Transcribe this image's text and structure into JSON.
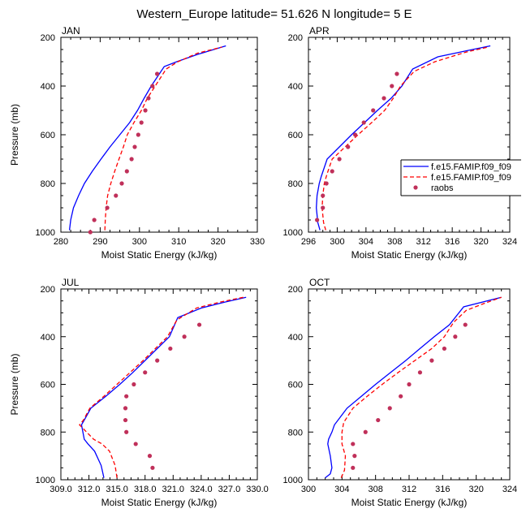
{
  "figure": {
    "title": "Western_Europe  latitude= 51.626 N longitude= 5 E"
  },
  "legend": {
    "entries": [
      {
        "label": "f.e15.FAMIP.f09_f09",
        "color": "#0000ff",
        "style": "solid"
      },
      {
        "label": "f.e15.FAMIP.f09_f09",
        "color": "#ff0000",
        "style": "dashed"
      },
      {
        "label": "raobs",
        "color": "#c0305a",
        "style": "dot"
      }
    ]
  },
  "chart_data": [
    {
      "type": "line",
      "panel_label": "JAN",
      "xlabel": "Moist Static Energy (kJ/kg)",
      "ylabel": "Pressure (mb)",
      "xlim": [
        280,
        330
      ],
      "ylim": [
        1000,
        200
      ],
      "y_inverted": true,
      "xticks": [
        "280",
        "290",
        "300",
        "310",
        "320",
        "330"
      ],
      "xtick_values": [
        280,
        290,
        300,
        310,
        320,
        330
      ],
      "yticks": [
        "200",
        "400",
        "600",
        "800",
        "1000"
      ],
      "ytick_values": [
        200,
        400,
        600,
        800,
        1000
      ],
      "series": [
        {
          "style": "solid",
          "color": "#0000ff",
          "points": [
            [
              282.2,
              992
            ],
            [
              282.5,
              950
            ],
            [
              283.2,
              900
            ],
            [
              284.5,
              850
            ],
            [
              286,
              800
            ],
            [
              288,
              750
            ],
            [
              290.2,
              700
            ],
            [
              292.5,
              650
            ],
            [
              295,
              600
            ],
            [
              297.5,
              550
            ],
            [
              299.5,
              500
            ],
            [
              301.2,
              450
            ],
            [
              303,
              400
            ],
            [
              306.3,
              320
            ],
            [
              309.5,
              300
            ],
            [
              314.8,
              270
            ],
            [
              322,
              235
            ]
          ]
        },
        {
          "style": "dashed",
          "color": "#ff0000",
          "points": [
            [
              291.2,
              992
            ],
            [
              291.3,
              950
            ],
            [
              291.5,
              900
            ],
            [
              291.9,
              850
            ],
            [
              292.7,
              800
            ],
            [
              293.7,
              750
            ],
            [
              294.8,
              700
            ],
            [
              295.9,
              650
            ],
            [
              296.9,
              600
            ],
            [
              298.6,
              550
            ],
            [
              300.5,
              500
            ],
            [
              302,
              450
            ],
            [
              304,
              400
            ],
            [
              306.8,
              330
            ],
            [
              309.8,
              300
            ],
            [
              314.8,
              265
            ],
            [
              321,
              240
            ]
          ]
        },
        {
          "style": "dot",
          "color": "#c0305a",
          "points": [
            [
              287.5,
              1000
            ],
            [
              288.5,
              950
            ],
            [
              291.8,
              900
            ],
            [
              294,
              850
            ],
            [
              295.5,
              800
            ],
            [
              296.8,
              750
            ],
            [
              298,
              700
            ],
            [
              298.8,
              650
            ],
            [
              299.7,
              600
            ],
            [
              300.5,
              550
            ],
            [
              301.5,
              500
            ],
            [
              302.3,
              450
            ],
            [
              303.3,
              400
            ],
            [
              304.5,
              350
            ]
          ]
        }
      ]
    },
    {
      "type": "line",
      "panel_label": "APR",
      "xlabel": "Moist Static Energy (kJ/kg)",
      "ylabel": "",
      "xlim": [
        296,
        324
      ],
      "ylim": [
        1000,
        200
      ],
      "y_inverted": true,
      "xticks": [
        "296",
        "300",
        "304",
        "308",
        "312",
        "316",
        "320",
        "324"
      ],
      "xtick_values": [
        296,
        300,
        304,
        308,
        312,
        316,
        320,
        324
      ],
      "yticks": [
        "200",
        "400",
        "600",
        "800",
        "1000"
      ],
      "ytick_values": [
        200,
        400,
        600,
        800,
        1000
      ],
      "series": [
        {
          "style": "solid",
          "color": "#0000ff",
          "points": [
            [
              297.6,
              992
            ],
            [
              297.3,
              960
            ],
            [
              297.1,
              900
            ],
            [
              297.2,
              850
            ],
            [
              297.5,
              800
            ],
            [
              297.8,
              770
            ],
            [
              298.6,
              700
            ],
            [
              300.3,
              650
            ],
            [
              302,
              600
            ],
            [
              303.8,
              550
            ],
            [
              305.6,
              500
            ],
            [
              307.5,
              450
            ],
            [
              309,
              400
            ],
            [
              310.5,
              330
            ],
            [
              314,
              280
            ],
            [
              318,
              255
            ],
            [
              321.3,
              235
            ]
          ]
        },
        {
          "style": "dashed",
          "color": "#ff0000",
          "points": [
            [
              298.4,
              992
            ],
            [
              298.1,
              960
            ],
            [
              297.9,
              900
            ],
            [
              298,
              850
            ],
            [
              298.2,
              800
            ],
            [
              298.6,
              760
            ],
            [
              299.3,
              700
            ],
            [
              301.1,
              650
            ],
            [
              302.9,
              600
            ],
            [
              304.8,
              550
            ],
            [
              306.6,
              500
            ],
            [
              307.8,
              450
            ],
            [
              308.8,
              400
            ],
            [
              310.7,
              340
            ],
            [
              313.6,
              300
            ],
            [
              318,
              260
            ],
            [
              321,
              240
            ]
          ]
        },
        {
          "style": "dot",
          "color": "#c0305a",
          "points": [
            [
              297.2,
              950
            ],
            [
              298,
              900
            ],
            [
              298,
              850
            ],
            [
              298.5,
              800
            ],
            [
              299.3,
              750
            ],
            [
              300.3,
              700
            ],
            [
              301.5,
              650
            ],
            [
              302.5,
              600
            ],
            [
              303.7,
              550
            ],
            [
              305,
              500
            ],
            [
              306.5,
              450
            ],
            [
              307.6,
              400
            ],
            [
              308.3,
              350
            ]
          ]
        }
      ]
    },
    {
      "type": "line",
      "panel_label": "JUL",
      "xlabel": "Moist Static Energy (kJ/kg)",
      "ylabel": "Pressure (mb)",
      "xlim": [
        309,
        330
      ],
      "ylim": [
        1000,
        200
      ],
      "y_inverted": true,
      "xticks": [
        "309.0",
        "312.0",
        "315.0",
        "318.0",
        "321.0",
        "324.0",
        "327.0",
        "330.0"
      ],
      "xtick_values": [
        309,
        312,
        315,
        318,
        321,
        324,
        327,
        330
      ],
      "yticks": [
        "200",
        "400",
        "600",
        "800",
        "1000"
      ],
      "ytick_values": [
        200,
        400,
        600,
        800,
        1000
      ],
      "series": [
        {
          "style": "solid",
          "color": "#0000ff",
          "points": [
            [
              313.6,
              992
            ],
            [
              313.3,
              940
            ],
            [
              312.6,
              880
            ],
            [
              311.9,
              850
            ],
            [
              311.5,
              830
            ],
            [
              311.2,
              770
            ],
            [
              311.5,
              750
            ],
            [
              312.2,
              700
            ],
            [
              313.8,
              650
            ],
            [
              315.3,
              600
            ],
            [
              316.7,
              550
            ],
            [
              318,
              500
            ],
            [
              319.3,
              450
            ],
            [
              320.6,
              400
            ],
            [
              321.5,
              320
            ],
            [
              324,
              280
            ],
            [
              326.5,
              255
            ],
            [
              328.8,
              235
            ]
          ]
        },
        {
          "style": "dashed",
          "color": "#ff0000",
          "points": [
            [
              315,
              992
            ],
            [
              314.8,
              940
            ],
            [
              314.2,
              880
            ],
            [
              313.4,
              850
            ],
            [
              312.5,
              830
            ],
            [
              311,
              770
            ],
            [
              311.4,
              750
            ],
            [
              312.1,
              700
            ],
            [
              313.6,
              650
            ],
            [
              315,
              600
            ],
            [
              316.4,
              550
            ],
            [
              317.8,
              500
            ],
            [
              319.1,
              450
            ],
            [
              320.4,
              400
            ],
            [
              321.4,
              330
            ],
            [
              323.5,
              280
            ],
            [
              326,
              255
            ],
            [
              328.5,
              235
            ]
          ]
        },
        {
          "style": "dot",
          "color": "#c0305a",
          "points": [
            [
              318.8,
              950
            ],
            [
              318.5,
              900
            ],
            [
              317,
              850
            ],
            [
              316,
              800
            ],
            [
              315.9,
              750
            ],
            [
              315.9,
              700
            ],
            [
              316,
              650
            ],
            [
              316.8,
              600
            ],
            [
              318,
              550
            ],
            [
              319.3,
              500
            ],
            [
              320.7,
              450
            ],
            [
              322.2,
              400
            ],
            [
              323.8,
              350
            ]
          ]
        }
      ]
    },
    {
      "type": "line",
      "panel_label": "OCT",
      "xlabel": "Moist Static Energy (kJ/kg)",
      "ylabel": "",
      "xlim": [
        300,
        324
      ],
      "ylim": [
        1000,
        200
      ],
      "y_inverted": true,
      "xticks": [
        "300",
        "304",
        "308",
        "312",
        "316",
        "320",
        "324"
      ],
      "xtick_values": [
        300,
        304,
        308,
        312,
        316,
        320,
        324
      ],
      "yticks": [
        "200",
        "400",
        "600",
        "800",
        "1000"
      ],
      "ytick_values": [
        200,
        400,
        600,
        800,
        1000
      ],
      "series": [
        {
          "style": "solid",
          "color": "#0000ff",
          "points": [
            [
              302,
              992
            ],
            [
              302.6,
              975
            ],
            [
              302.8,
              950
            ],
            [
              302.6,
              900
            ],
            [
              302.3,
              850
            ],
            [
              302.4,
              830
            ],
            [
              302.8,
              800
            ],
            [
              303.1,
              770
            ],
            [
              304.6,
              700
            ],
            [
              306.3,
              650
            ],
            [
              308,
              600
            ],
            [
              309.8,
              550
            ],
            [
              311.6,
              500
            ],
            [
              313.3,
              450
            ],
            [
              315,
              400
            ],
            [
              316.8,
              350
            ],
            [
              318.5,
              275
            ],
            [
              323,
              235
            ]
          ]
        },
        {
          "style": "dashed",
          "color": "#ff0000",
          "points": [
            [
              303.9,
              992
            ],
            [
              304.3,
              960
            ],
            [
              304.4,
              900
            ],
            [
              304,
              850
            ],
            [
              304,
              800
            ],
            [
              304.2,
              760
            ],
            [
              305.3,
              700
            ],
            [
              307,
              650
            ],
            [
              308.8,
              600
            ],
            [
              310.7,
              550
            ],
            [
              312.7,
              500
            ],
            [
              314.7,
              450
            ],
            [
              316.2,
              400
            ],
            [
              317.3,
              340
            ],
            [
              318.8,
              290
            ],
            [
              321,
              260
            ],
            [
              323,
              235
            ]
          ]
        },
        {
          "style": "dot",
          "color": "#c0305a",
          "points": [
            [
              305.3,
              950
            ],
            [
              305.5,
              900
            ],
            [
              305.3,
              850
            ],
            [
              306.8,
              800
            ],
            [
              308.3,
              750
            ],
            [
              309.7,
              700
            ],
            [
              311,
              650
            ],
            [
              312,
              600
            ],
            [
              313.3,
              550
            ],
            [
              314.7,
              500
            ],
            [
              316.2,
              450
            ],
            [
              317.5,
              400
            ],
            [
              318.7,
              350
            ]
          ]
        }
      ]
    }
  ]
}
